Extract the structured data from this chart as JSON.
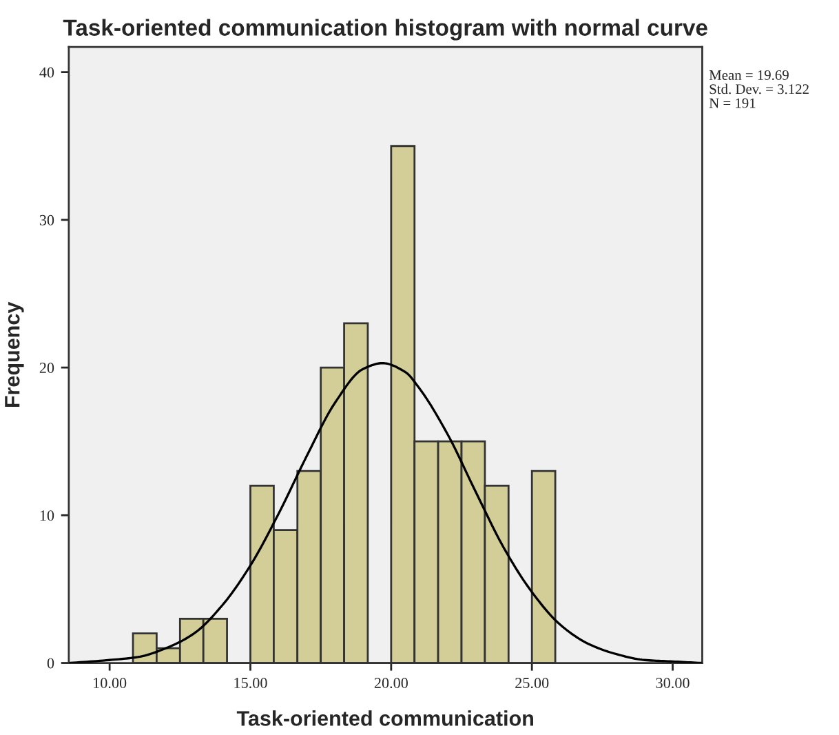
{
  "chart_data": {
    "type": "histogram",
    "title": "Task-oriented communication histogram with normal curve",
    "xlabel": "Task-oriented communication",
    "ylabel": "Frequency",
    "series": [
      {
        "color": "#d3ce97",
        "bins": [
          10.83,
          11.67,
          12.5,
          13.33,
          14.17,
          15,
          15.83,
          16.67,
          17.5,
          18.33,
          19.17,
          20,
          20.83,
          21.67,
          22.5,
          23.33,
          24.17,
          25,
          25.83
        ],
        "values": [
          2,
          1,
          3,
          3,
          0,
          12,
          9,
          13,
          20,
          23,
          0,
          35,
          15,
          15,
          15,
          12,
          0,
          13
        ]
      },
      {
        "type": "line",
        "color": "#000000",
        "x": [
          8.6,
          10,
          11,
          12,
          13,
          14,
          15,
          16,
          17,
          18,
          19,
          19.69,
          20.5,
          21,
          22,
          23,
          24,
          25,
          26,
          27,
          28,
          29,
          30,
          31
        ],
        "values": [
          0.0,
          0.2,
          0.4,
          1.0,
          2.0,
          3.9,
          6.6,
          10.1,
          14.0,
          17.6,
          19.9,
          20.3,
          19.7,
          18.6,
          15.5,
          11.6,
          7.8,
          4.8,
          2.6,
          1.3,
          0.6,
          0.2,
          0.1,
          0.0
        ]
      }
    ],
    "xlim": [
      8.55,
      31.05
    ],
    "ylim": [
      0,
      41.7
    ],
    "xticks": [
      {
        "value": 10,
        "label": "10.00"
      },
      {
        "value": 15,
        "label": "15.00"
      },
      {
        "value": 20,
        "label": "20.00"
      },
      {
        "value": 25,
        "label": "25.00"
      },
      {
        "value": 30,
        "label": "30.00"
      }
    ],
    "yticks": [
      0,
      10,
      20,
      30,
      40
    ],
    "annotations": [
      "Mean = 19.69\nStd. Dev. = 3.122\nN = 191"
    ]
  }
}
